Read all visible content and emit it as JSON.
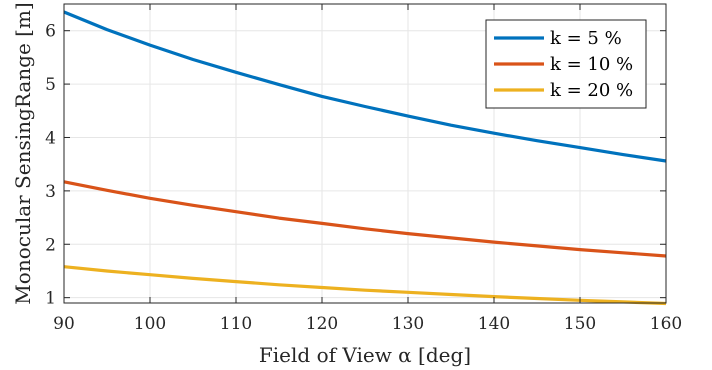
{
  "chart_data": {
    "type": "line",
    "title": "",
    "xlabel": "Field of View α [deg]",
    "ylabel": "Monocular SensingRange [m]",
    "xlim": [
      90,
      160
    ],
    "ylim": [
      0.9,
      6.5
    ],
    "xticks": [
      90,
      100,
      110,
      120,
      130,
      140,
      150,
      160
    ],
    "yticks": [
      1,
      2,
      3,
      4,
      5,
      6
    ],
    "grid": true,
    "legend_position": "top-right",
    "x": [
      90,
      95,
      100,
      105,
      110,
      115,
      120,
      125,
      130,
      135,
      140,
      145,
      150,
      155,
      160
    ],
    "series": [
      {
        "name": "k = 5 %",
        "color": "#0072BD",
        "values": [
          6.35,
          6.02,
          5.73,
          5.46,
          5.22,
          4.99,
          4.77,
          4.58,
          4.4,
          4.23,
          4.08,
          3.94,
          3.81,
          3.68,
          3.56
        ]
      },
      {
        "name": "k = 10 %",
        "color": "#D95319",
        "values": [
          3.17,
          3.01,
          2.86,
          2.73,
          2.61,
          2.49,
          2.39,
          2.29,
          2.2,
          2.12,
          2.04,
          1.97,
          1.9,
          1.84,
          1.78
        ]
      },
      {
        "name": "k = 20 %",
        "color": "#EDB120",
        "values": [
          1.58,
          1.5,
          1.43,
          1.36,
          1.3,
          1.24,
          1.19,
          1.14,
          1.1,
          1.06,
          1.02,
          0.985,
          0.95,
          0.92,
          0.89
        ]
      }
    ]
  }
}
